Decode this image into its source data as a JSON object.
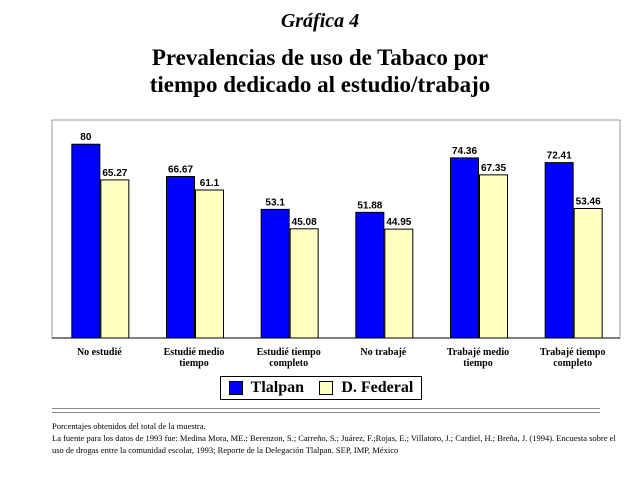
{
  "header": {
    "label": "Gráfica 4",
    "title_line1": "Prevalencias de uso de Tabaco por",
    "title_line2": "tiempo dedicado al estudio/trabajo"
  },
  "chart_data": {
    "type": "bar",
    "categories": [
      [
        "No estudié"
      ],
      [
        "Estudié medio",
        "tiempo"
      ],
      [
        "Estudié tiempo",
        "completo"
      ],
      [
        "No trabajé"
      ],
      [
        "Trabajé medio",
        "tiempo"
      ],
      [
        "Trabajé tiempo",
        "completo"
      ]
    ],
    "series": [
      {
        "name": "Tlalpan",
        "color": "#0000ff",
        "values": [
          80,
          66.67,
          53.1,
          51.88,
          74.36,
          72.41
        ]
      },
      {
        "name": "D. Federal",
        "color": "#ffffc0",
        "values": [
          65.27,
          61.1,
          45.08,
          44.95,
          67.35,
          53.46
        ]
      }
    ],
    "ylim": [
      0,
      90
    ],
    "grid": false,
    "legend_placement": "bottom"
  },
  "notes": {
    "line1": "Porcentajes obtenidos del total de la muestra.",
    "line2": "La fuente para los datos de 1993 fue: Medina Mora, ME.; Berenzon, S.; Carreño, S.; Juárez, F.;Rojas, E.; Villatoro, J.; Cardiel, H.; Breña, J. (1994). Encuesta sobre el uso de drogas entre la comunidad escolar, 1993; Reporte de la Delegación Tlalpan. SEP, IMP, México"
  }
}
